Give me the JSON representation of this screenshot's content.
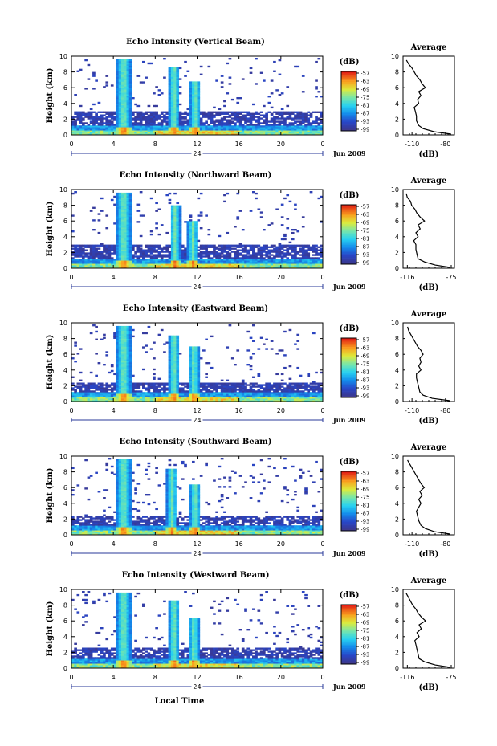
{
  "chart_data": [
    {
      "type": "heatmap",
      "title": "Echo Intensity (Vertical Beam)",
      "ylabel": "Height (km)",
      "ylim": [
        0,
        10
      ],
      "xlim": [
        0,
        24
      ],
      "x_ticks": [
        "0",
        "4",
        "8",
        "12",
        "16",
        "20",
        "0"
      ],
      "y_ticks": [
        "0",
        "2",
        "4",
        "6",
        "8",
        "10"
      ],
      "date_mid": "24",
      "date_end": "Jun 2009",
      "colorbar_label": "(dB)",
      "colorbar_ticks": [
        "-57",
        "-63",
        "-69",
        "-75",
        "-81",
        "-87",
        "-93",
        "-99"
      ],
      "average": {
        "title": "Average",
        "xlabel": "(dB)",
        "x_ticks": [
          "-110",
          "-80"
        ],
        "xlim": [
          -118,
          -72
        ],
        "profile": [
          [
            -75,
            0.1
          ],
          [
            -90,
            0.4
          ],
          [
            -100,
            0.8
          ],
          [
            -104,
            1.2
          ],
          [
            -106,
            1.8
          ],
          [
            -106,
            2.4
          ],
          [
            -107,
            3.0
          ],
          [
            -108,
            3.5
          ],
          [
            -104,
            4.0
          ],
          [
            -105,
            4.5
          ],
          [
            -102,
            5.0
          ],
          [
            -104,
            5.5
          ],
          [
            -98,
            6.0
          ],
          [
            -101,
            6.5
          ],
          [
            -103,
            7.0
          ],
          [
            -106,
            7.5
          ],
          [
            -108,
            8.0
          ],
          [
            -110,
            8.5
          ],
          [
            -113,
            9.0
          ],
          [
            -115,
            9.5
          ]
        ]
      },
      "bursts": [
        {
          "t": 5.0,
          "w": 0.7,
          "top": 9.6
        },
        {
          "t": 9.8,
          "w": 0.5,
          "top": 8.6
        },
        {
          "t": 11.8,
          "w": 0.5,
          "top": 6.8
        }
      ],
      "cloud_layer_top_km": 3.0
    },
    {
      "type": "heatmap",
      "title": "Echo Intensity (Northward Beam)",
      "ylabel": "Height (km)",
      "ylim": [
        0,
        10
      ],
      "xlim": [
        0,
        24
      ],
      "x_ticks": [
        "0",
        "4",
        "8",
        "12",
        "16",
        "20",
        "0"
      ],
      "y_ticks": [
        "0",
        "2",
        "4",
        "6",
        "8",
        "10"
      ],
      "date_mid": "24",
      "date_end": "Jun 2009",
      "colorbar_label": "(dB)",
      "colorbar_ticks": [
        "-57",
        "-63",
        "-69",
        "-75",
        "-81",
        "-87",
        "-93",
        "-99"
      ],
      "average": {
        "title": "Average",
        "xlabel": "(dB)",
        "x_ticks": [
          "-116",
          "-75"
        ],
        "xlim": [
          -120,
          -72
        ],
        "profile": [
          [
            -76,
            0.1
          ],
          [
            -90,
            0.4
          ],
          [
            -100,
            0.8
          ],
          [
            -106,
            1.2
          ],
          [
            -107,
            1.8
          ],
          [
            -108,
            2.4
          ],
          [
            -108,
            3.0
          ],
          [
            -110,
            3.5
          ],
          [
            -106,
            4.0
          ],
          [
            -108,
            4.5
          ],
          [
            -104,
            5.0
          ],
          [
            -106,
            5.5
          ],
          [
            -100,
            6.0
          ],
          [
            -104,
            6.5
          ],
          [
            -107,
            7.0
          ],
          [
            -109,
            7.5
          ],
          [
            -112,
            8.0
          ],
          [
            -113,
            8.5
          ],
          [
            -116,
            9.0
          ],
          [
            -117,
            9.5
          ]
        ]
      },
      "bursts": [
        {
          "t": 5.0,
          "w": 0.7,
          "top": 9.6
        },
        {
          "t": 9.9,
          "w": 0.5,
          "top": 8.0
        },
        {
          "t": 11.6,
          "w": 0.5,
          "top": 6.0
        }
      ],
      "cloud_layer_top_km": 3.0
    },
    {
      "type": "heatmap",
      "title": "Echo Intensity (Eastward Beam)",
      "ylabel": "Height (km)",
      "ylim": [
        0,
        10
      ],
      "xlim": [
        0,
        24
      ],
      "x_ticks": [
        "0",
        "4",
        "8",
        "12",
        "16",
        "20",
        "0"
      ],
      "y_ticks": [
        "0",
        "2",
        "4",
        "6",
        "8",
        "10"
      ],
      "date_mid": "24",
      "date_end": "Jun 2009",
      "colorbar_label": "(dB)",
      "colorbar_ticks": [
        "-57",
        "-63",
        "-69",
        "-75",
        "-81",
        "-87",
        "-93",
        "-99"
      ],
      "average": {
        "title": "Average",
        "xlabel": "(dB)",
        "x_ticks": [
          "-110",
          "-80"
        ],
        "xlim": [
          -118,
          -72
        ],
        "profile": [
          [
            -76,
            0.1
          ],
          [
            -92,
            0.4
          ],
          [
            -100,
            0.8
          ],
          [
            -103,
            1.2
          ],
          [
            -104,
            1.8
          ],
          [
            -105,
            2.4
          ],
          [
            -106,
            3.0
          ],
          [
            -106,
            3.5
          ],
          [
            -102,
            4.0
          ],
          [
            -104,
            4.5
          ],
          [
            -102,
            5.0
          ],
          [
            -103,
            5.5
          ],
          [
            -100,
            6.0
          ],
          [
            -102,
            6.5
          ],
          [
            -105,
            7.0
          ],
          [
            -107,
            7.5
          ],
          [
            -109,
            8.0
          ],
          [
            -111,
            8.5
          ],
          [
            -113,
            9.0
          ],
          [
            -114,
            9.5
          ]
        ]
      },
      "bursts": [
        {
          "t": 5.0,
          "w": 0.7,
          "top": 9.6
        },
        {
          "t": 9.8,
          "w": 0.5,
          "top": 8.4
        },
        {
          "t": 11.7,
          "w": 0.5,
          "top": 7.0
        }
      ],
      "cloud_layer_top_km": 2.5
    },
    {
      "type": "heatmap",
      "title": "Echo Intensity (Southward Beam)",
      "ylabel": "Height (km)",
      "ylim": [
        0,
        10
      ],
      "xlim": [
        0,
        24
      ],
      "x_ticks": [
        "0",
        "4",
        "8",
        "12",
        "16",
        "20",
        "0"
      ],
      "y_ticks": [
        "0",
        "2",
        "4",
        "6",
        "8",
        "10"
      ],
      "date_mid": "24",
      "date_end": "Jun 2009",
      "colorbar_label": "(dB)",
      "colorbar_ticks": [
        "-57",
        "-63",
        "-69",
        "-75",
        "-81",
        "-87",
        "-93",
        "-99"
      ],
      "average": {
        "title": "Average",
        "xlabel": "(dB)",
        "x_ticks": [
          "-110",
          "-80"
        ],
        "xlim": [
          -118,
          -72
        ],
        "profile": [
          [
            -76,
            0.1
          ],
          [
            -90,
            0.4
          ],
          [
            -98,
            0.8
          ],
          [
            -102,
            1.2
          ],
          [
            -104,
            1.8
          ],
          [
            -105,
            2.4
          ],
          [
            -106,
            3.0
          ],
          [
            -104,
            3.5
          ],
          [
            -102,
            4.0
          ],
          [
            -104,
            4.5
          ],
          [
            -101,
            5.0
          ],
          [
            -103,
            5.5
          ],
          [
            -99,
            6.0
          ],
          [
            -102,
            6.5
          ],
          [
            -104,
            7.0
          ],
          [
            -106,
            7.5
          ],
          [
            -108,
            8.0
          ],
          [
            -110,
            8.5
          ],
          [
            -112,
            9.0
          ],
          [
            -114,
            9.5
          ]
        ]
      },
      "bursts": [
        {
          "t": 5.0,
          "w": 0.7,
          "top": 9.6
        },
        {
          "t": 9.6,
          "w": 0.5,
          "top": 8.4
        },
        {
          "t": 11.8,
          "w": 0.5,
          "top": 6.5
        }
      ],
      "cloud_layer_top_km": 2.4
    },
    {
      "type": "heatmap",
      "title": "Echo Intensity (Westward Beam)",
      "ylabel": "Height (km)",
      "xlabel": "Local Time",
      "ylim": [
        0,
        10
      ],
      "xlim": [
        0,
        24
      ],
      "x_ticks": [
        "0",
        "4",
        "8",
        "12",
        "16",
        "20",
        "0"
      ],
      "y_ticks": [
        "0",
        "2",
        "4",
        "6",
        "8",
        "10"
      ],
      "date_mid": "24",
      "date_end": "Jun 2009",
      "colorbar_label": "(dB)",
      "colorbar_ticks": [
        "-57",
        "-63",
        "-69",
        "-75",
        "-81",
        "-87",
        "-93",
        "-99"
      ],
      "average": {
        "title": "Average",
        "xlabel": "(dB)",
        "x_ticks": [
          "-116",
          "-75"
        ],
        "xlim": [
          -120,
          -72
        ],
        "profile": [
          [
            -76,
            0.1
          ],
          [
            -90,
            0.4
          ],
          [
            -100,
            0.8
          ],
          [
            -105,
            1.2
          ],
          [
            -106,
            1.8
          ],
          [
            -107,
            2.4
          ],
          [
            -108,
            3.0
          ],
          [
            -109,
            3.5
          ],
          [
            -105,
            4.0
          ],
          [
            -107,
            4.5
          ],
          [
            -103,
            5.0
          ],
          [
            -105,
            5.5
          ],
          [
            -99,
            6.0
          ],
          [
            -103,
            6.5
          ],
          [
            -106,
            7.0
          ],
          [
            -108,
            7.5
          ],
          [
            -111,
            8.0
          ],
          [
            -113,
            8.5
          ],
          [
            -115,
            9.0
          ],
          [
            -117,
            9.5
          ]
        ]
      },
      "bursts": [
        {
          "t": 5.0,
          "w": 0.7,
          "top": 9.6
        },
        {
          "t": 9.8,
          "w": 0.5,
          "top": 8.6
        },
        {
          "t": 11.7,
          "w": 0.5,
          "top": 6.5
        }
      ],
      "cloud_layer_top_km": 2.6
    }
  ]
}
